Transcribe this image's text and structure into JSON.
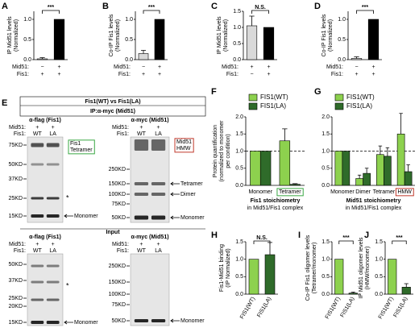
{
  "chart_data": [
    {
      "type": "bar",
      "letter": "A",
      "ylabel": [
        "IP Mid51 levels",
        "(Normalized)"
      ],
      "values": [
        0.02,
        1.0
      ],
      "errors": [
        0.03,
        null
      ],
      "colors": [
        "#d9d9d9",
        "#000000"
      ],
      "ylim": [
        0,
        1.2
      ],
      "yticks": [
        {
          "value": 0,
          "label": "0.0"
        },
        {
          "value": 0.5,
          "label": "0.5"
        },
        {
          "value": 1,
          "label": "1.0"
        }
      ],
      "conditions": [
        {
          "name": "Mid51:",
          "values": [
            "−",
            "+"
          ]
        },
        {
          "name": "Fis1:",
          "values": [
            "+",
            "+"
          ]
        }
      ],
      "significance": "***"
    },
    {
      "type": "bar",
      "letter": "B",
      "ylabel": [
        "Co-IP Fis1 levels",
        "(Normalized)"
      ],
      "values": [
        0.15,
        1.0
      ],
      "errors": [
        0.08,
        null
      ],
      "colors": [
        "#d9d9d9",
        "#000000"
      ],
      "ylim": [
        0,
        1.2
      ],
      "yticks": [
        {
          "value": 0,
          "label": "0.0"
        },
        {
          "value": 0.5,
          "label": "0.5"
        },
        {
          "value": 1,
          "label": "1.0"
        }
      ],
      "conditions": [
        {
          "name": "Mid51:",
          "values": [
            "−",
            "+"
          ]
        },
        {
          "name": "Fis1:",
          "values": [
            "+",
            "+"
          ]
        }
      ],
      "significance": "***"
    },
    {
      "type": "bar",
      "letter": "C",
      "ylabel": [
        "IP Mid51 levels",
        "(Normalized)"
      ],
      "values": [
        1.05,
        1.0
      ],
      "errors": [
        0.3,
        null
      ],
      "colors": [
        "#d9d9d9",
        "#000000"
      ],
      "ylim": [
        0,
        1.5
      ],
      "yticks": [
        {
          "value": 0,
          "label": "0.0"
        },
        {
          "value": 0.5,
          "label": "0.5"
        },
        {
          "value": 1,
          "label": "1.0"
        },
        {
          "value": 1.5,
          "label": "1.5"
        }
      ],
      "conditions": [
        {
          "name": "Mid51:",
          "values": [
            "+",
            "+"
          ]
        },
        {
          "name": "Fis1:",
          "values": [
            "−",
            "+"
          ]
        }
      ],
      "significance": "N.S."
    },
    {
      "type": "bar",
      "letter": "D",
      "ylabel": [
        "Co-IP Fis1 levels",
        "(Normalized)"
      ],
      "values": [
        0.03,
        1.0
      ],
      "errors": [
        0.04,
        null
      ],
      "colors": [
        "#d9d9d9",
        "#000000"
      ],
      "ylim": [
        0,
        1.2
      ],
      "yticks": [
        {
          "value": 0,
          "label": "0.0"
        },
        {
          "value": 0.5,
          "label": "0.5"
        },
        {
          "value": 1,
          "label": "1.0"
        }
      ],
      "conditions": [
        {
          "name": "Mid51:",
          "values": [
            "−",
            "+"
          ]
        },
        {
          "name": "Fis1:",
          "values": [
            "+",
            "+"
          ]
        }
      ],
      "significance": "***"
    },
    {
      "type": "grouped_bar",
      "letter": "F",
      "ylabel": [
        "Protein quantification",
        "(normalized to monomer",
        "per condition)"
      ],
      "categories": [
        "Monomer",
        "Tetramer"
      ],
      "series": [
        {
          "name": "FIS1(WT)",
          "color": "#8dd14e",
          "values": [
            1.0,
            1.3
          ],
          "errors": [
            null,
            0.35
          ]
        },
        {
          "name": "FIS1(LA)",
          "color": "#2f6b2a",
          "values": [
            1.0,
            0.03
          ],
          "errors": [
            null,
            0.02
          ]
        }
      ],
      "ylim": [
        0,
        2
      ],
      "yticks": [
        {
          "value": 0,
          "label": "0.0"
        },
        {
          "value": 0.5,
          "label": "0.5"
        },
        {
          "value": 1,
          "label": "1.0"
        },
        {
          "value": 1.5,
          "label": "1.5"
        },
        {
          "value": 2,
          "label": "2.0"
        }
      ],
      "reference_line": 1,
      "boxed_category": 1,
      "box_color": "#3aa845",
      "subtitle": [
        "Fis1 stoichiometry",
        "in Mid51/Fis1 complex"
      ]
    },
    {
      "type": "grouped_bar",
      "letter": "G",
      "categories": [
        "Monomer",
        "Dimer",
        "Tetramer",
        "HMW"
      ],
      "series": [
        {
          "name": "FIS1(WT)",
          "color": "#8dd14e",
          "values": [
            1.0,
            0.2,
            0.9,
            1.5
          ],
          "errors": [
            null,
            0.1,
            0.25,
            0.6
          ]
        },
        {
          "name": "FIS1(LA)",
          "color": "#2f6b2a",
          "values": [
            1.0,
            0.35,
            0.85,
            0.4
          ],
          "errors": [
            null,
            0.15,
            0.25,
            0.2
          ]
        }
      ],
      "ylim": [
        0,
        2
      ],
      "yticks": [
        {
          "value": 0,
          "label": "0.0"
        },
        {
          "value": 0.5,
          "label": "0.5"
        },
        {
          "value": 1,
          "label": "1.0"
        },
        {
          "value": 1.5,
          "label": "1.5"
        },
        {
          "value": 2,
          "label": "2.0"
        }
      ],
      "reference_line": 1,
      "boxed_category": 3,
      "box_color": "#c0392b",
      "subtitle": [
        "Mid51 stoichiometry",
        "in Mid51/Fis1 complex"
      ]
    },
    {
      "type": "bar",
      "letter": "H",
      "ylabel": [
        "Fis1-Mid51 binding",
        "(IP Normalized)"
      ],
      "categories": [
        "FIS1(WT)",
        "FIS1(LA)"
      ],
      "values": [
        1.0,
        1.13
      ],
      "errors": [
        null,
        0.35
      ],
      "colors": [
        "#8dd14e",
        "#2f6b2a"
      ],
      "ylim": [
        0,
        1.5
      ],
      "yticks": [
        {
          "value": 0,
          "label": "0.0"
        },
        {
          "value": 0.5,
          "label": "0.5"
        },
        {
          "value": 1,
          "label": "1.0"
        },
        {
          "value": 1.5,
          "label": "1.5"
        }
      ],
      "significance": "N.S."
    },
    {
      "type": "bar",
      "letter": "I",
      "ylabel": [
        "Co-IP Fis1 oligomer levels",
        "(Tetramer/monomer)"
      ],
      "categories": [
        "FIS1(WT)",
        "FIS1(LA)"
      ],
      "values": [
        1.0,
        0.03
      ],
      "errors": [
        null,
        0.03
      ],
      "colors": [
        "#8dd14e",
        "#2f6b2a"
      ],
      "ylim": [
        0,
        1.5
      ],
      "yticks": [
        {
          "value": 0,
          "label": "0.0"
        },
        {
          "value": 0.5,
          "label": "0.5"
        },
        {
          "value": 1,
          "label": "1.0"
        },
        {
          "value": 1.5,
          "label": "1.5"
        }
      ],
      "significance": "***"
    },
    {
      "type": "bar",
      "letter": "J",
      "ylabel": [
        "IP Mid51 oligomer levels",
        "(HMW/monomer)"
      ],
      "categories": [
        "FIS1(WT)",
        "FIS1(LA)"
      ],
      "values": [
        1.0,
        0.2
      ],
      "errors": [
        null,
        0.1
      ],
      "colors": [
        "#8dd14e",
        "#2f6b2a"
      ],
      "ylim": [
        0,
        1.5
      ],
      "yticks": [
        {
          "value": 0,
          "label": "0.0"
        },
        {
          "value": 0.5,
          "label": "0.5"
        },
        {
          "value": 1,
          "label": "1.0"
        },
        {
          "value": 1.5,
          "label": "1.5"
        }
      ],
      "significance": "***"
    }
  ],
  "blots": {
    "letter": "E",
    "header": "Fis1(WT) vs Fis1(LA)",
    "ip_label": "IP:α-myc (Mid51)",
    "input_label": "Input",
    "panels": [
      {
        "title": "α-flag (Fis1)",
        "conditions": [
          {
            "name": "Mid51:",
            "values": [
              "+",
              "+"
            ]
          },
          {
            "name": "Fis1:",
            "values": [
              "WT",
              "LA"
            ]
          }
        ],
        "markers": [
          "75KD",
          "50KD",
          "37KD",
          "25KD",
          "15KD"
        ],
        "boxed": [
          "Fis1",
          "Tetramer"
        ],
        "box_color": "#3aa845",
        "annotations": [
          "*",
          "Monomer"
        ]
      },
      {
        "title": "α-myc (Mid51)",
        "conditions": [
          {
            "name": "Mid51:",
            "values": [
              "+",
              "+"
            ]
          },
          {
            "name": "Fis1:",
            "values": [
              "WT",
              "LA"
            ]
          }
        ],
        "markers": [
          "250KD",
          "150KD",
          "100KD",
          "75KD",
          "50KD"
        ],
        "boxed": [
          "Mid51",
          "HMW"
        ],
        "box_color": "#c0392b",
        "annotations": [
          "Tetramer",
          "Dimer",
          "Monomer"
        ]
      },
      {
        "title": "α-flag (Fis1)",
        "conditions": [
          {
            "name": "Mid51:",
            "values": [
              "+",
              "+"
            ]
          },
          {
            "name": "Fis1:",
            "values": [
              "WT",
              "LA"
            ]
          }
        ],
        "markers": [
          "50KD",
          "37KD",
          "25KD",
          "20KD",
          "15KD"
        ],
        "annotations": [
          "*",
          "Monomer"
        ]
      },
      {
        "title": "α-myc (Mid51)",
        "conditions": [
          {
            "name": "Mid51:",
            "values": [
              "+",
              "+"
            ]
          },
          {
            "name": "Fis1:",
            "values": [
              "WT",
              "LA"
            ]
          }
        ],
        "markers": [
          "250KD",
          "150KD",
          "100KD",
          "75KD",
          "50KD"
        ],
        "annotations": [
          "Monomer"
        ]
      }
    ]
  }
}
